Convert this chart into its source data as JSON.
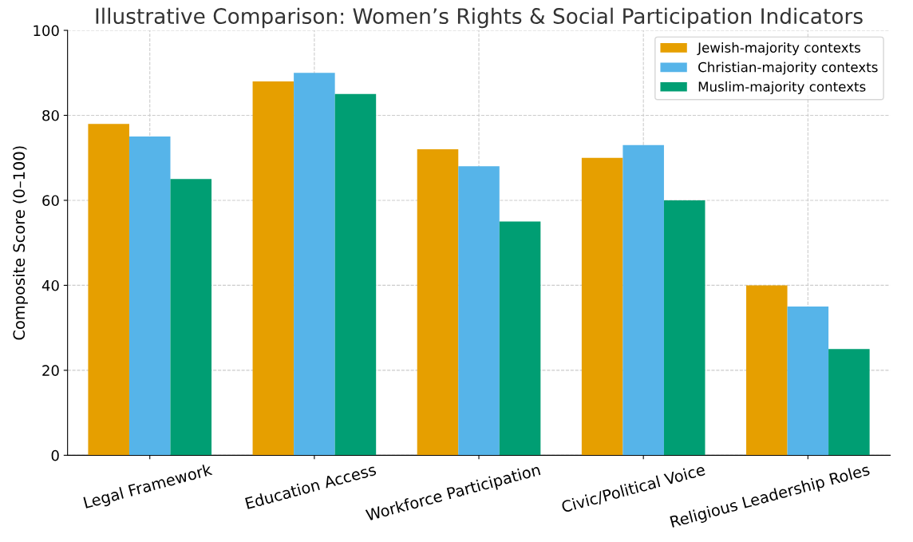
{
  "chart_data": {
    "type": "bar",
    "title": "Illustrative Comparison: Women’s Rights & Social Participation Indicators",
    "ylabel": "Composite Score (0–100)",
    "categories": [
      "Legal Framework",
      "Education Access",
      "Workforce Participation",
      "Civic/Political Voice",
      "Religious Leadership Roles"
    ],
    "series": [
      {
        "name": "Jewish-majority contexts",
        "color": "#e69f00",
        "values": [
          78,
          88,
          72,
          70,
          40
        ]
      },
      {
        "name": "Christian-majority contexts",
        "color": "#56b4e9",
        "values": [
          75,
          90,
          68,
          73,
          35
        ]
      },
      {
        "name": "Muslim-majority contexts",
        "color": "#009e73",
        "values": [
          65,
          85,
          55,
          60,
          25
        ]
      }
    ],
    "ylim": [
      0,
      100
    ],
    "yticks": [
      0,
      20,
      40,
      60,
      80,
      100
    ],
    "grid": true,
    "legend": "top right"
  }
}
